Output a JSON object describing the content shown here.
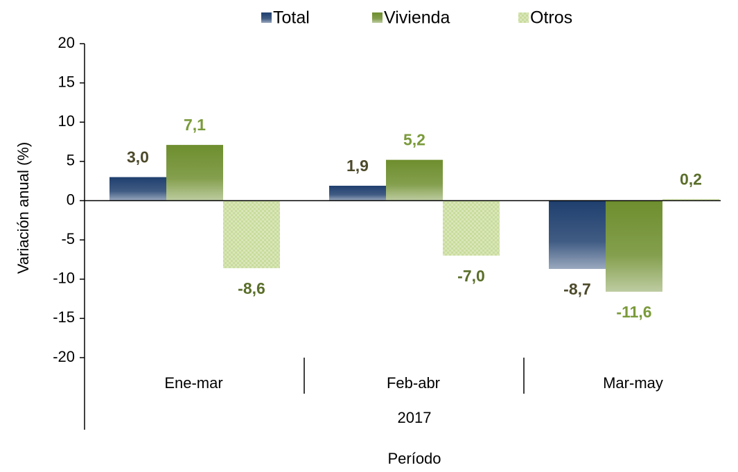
{
  "chart_data": {
    "type": "bar",
    "categories": [
      "Ene-mar",
      "Feb-abr",
      "Mar-may"
    ],
    "group_label": "2017",
    "x_label": "Período",
    "y_label": "Variación anual (%)",
    "series": [
      {
        "name": "Total",
        "color": "#1f3f6e",
        "label_color": "#4d4a2b",
        "values": [
          3.0,
          1.9,
          -8.7
        ],
        "value_labels": [
          "3,0",
          "1,9",
          "-8,7"
        ]
      },
      {
        "name": "Vivienda",
        "color": "#6e8e2e",
        "label_color": "#7a9a3a",
        "values": [
          7.1,
          5.2,
          -11.6
        ],
        "value_labels": [
          "7,1",
          "5,2",
          "-11,6"
        ]
      },
      {
        "name": "Otros",
        "color": "#c9dc9c",
        "label_color": "#5a6e2a",
        "values": [
          -8.6,
          -7.0,
          0.2
        ],
        "value_labels": [
          "-8,6",
          "-7,0",
          "0,2"
        ]
      }
    ],
    "ylim": [
      -20,
      20
    ],
    "yticks": [
      -20,
      -15,
      -10,
      -5,
      0,
      5,
      10,
      15,
      20
    ],
    "legend": "top"
  }
}
